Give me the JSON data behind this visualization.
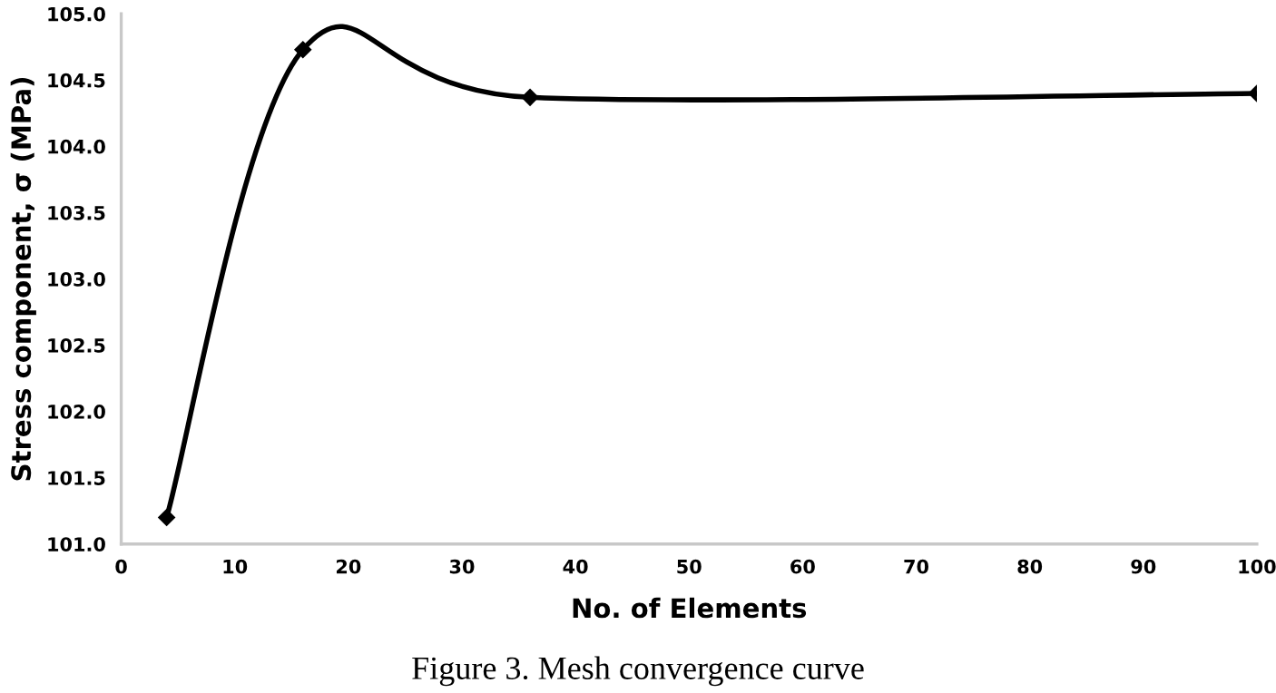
{
  "chart_data": {
    "type": "line",
    "xlabel": "No. of Elements",
    "ylabel": "Stress component, σ (MPa)",
    "x": [
      4,
      16,
      36,
      100
    ],
    "series": [
      {
        "color": "#000000",
        "values": [
          101.2,
          104.73,
          104.37,
          104.4
        ]
      }
    ],
    "xlim": [
      0,
      100
    ],
    "xticks": [
      0,
      10,
      20,
      30,
      40,
      50,
      60,
      70,
      80,
      90,
      100
    ],
    "ylim": [
      101.0,
      105.0
    ],
    "yticks": [
      {
        "value": 101.0,
        "label": "101.0"
      },
      {
        "value": 101.5,
        "label": "101.5"
      },
      {
        "value": 102.0,
        "label": "102.0"
      },
      {
        "value": 102.5,
        "label": "102.5"
      },
      {
        "value": 103.0,
        "label": "103.0"
      },
      {
        "value": 103.5,
        "label": "103.5"
      },
      {
        "value": 104.0,
        "label": "104.0"
      },
      {
        "value": 104.5,
        "label": "104.5"
      },
      {
        "value": 105.0,
        "label": "105.0"
      }
    ],
    "grid": false,
    "marker": "diamond",
    "line_style": "solid",
    "annotations": [
      "Figure 3. Mesh convergence curve"
    ]
  }
}
